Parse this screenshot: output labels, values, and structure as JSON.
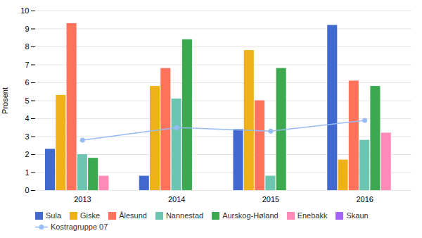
{
  "chart_data": {
    "type": "bar",
    "categories": [
      "2013",
      "2014",
      "2015",
      "2016"
    ],
    "ylabel": "Prosent",
    "ylim": [
      0,
      10
    ],
    "yticks": [
      0,
      1,
      2,
      3,
      4,
      5,
      6,
      7,
      8,
      9,
      10
    ],
    "grid": true,
    "legend": "bottom",
    "series": [
      {
        "name": "Sula",
        "values": [
          2.3,
          0.8,
          3.4,
          9.2
        ]
      },
      {
        "name": "Giske",
        "values": [
          5.3,
          5.8,
          7.8,
          1.7
        ]
      },
      {
        "name": "Ålesund",
        "values": [
          9.3,
          6.8,
          5.0,
          6.1
        ]
      },
      {
        "name": "Nannestad",
        "values": [
          2.0,
          5.1,
          0.8,
          2.8
        ]
      },
      {
        "name": "Aurskog-Høland",
        "values": [
          1.8,
          8.4,
          6.8,
          5.8
        ]
      },
      {
        "name": "Enebakk",
        "values": [
          0.8,
          0.0,
          0.0,
          3.2
        ]
      },
      {
        "name": "Skaun",
        "values": [
          0.0,
          0.0,
          0.0,
          0.0
        ]
      },
      {
        "name": "Kostragruppe 07",
        "type": "line",
        "marker": "circle",
        "values": [
          2.8,
          3.5,
          3.3,
          3.9
        ]
      }
    ]
  }
}
